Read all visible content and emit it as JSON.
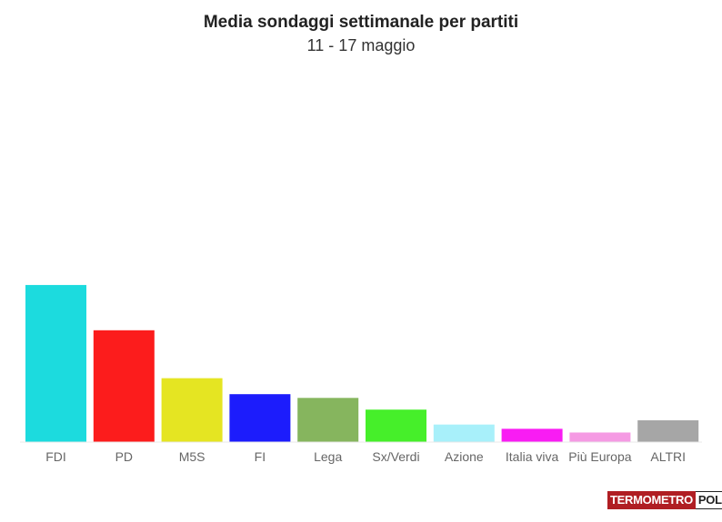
{
  "chart_data": {
    "type": "bar",
    "title": "Media sondaggi settimanale per partiti",
    "subtitle": "11 - 17 maggio",
    "categories": [
      "FDI",
      "PD",
      "M5S",
      "FI",
      "Lega",
      "Sx/Verdi",
      "Azione",
      "Italia viva",
      "Più Europa",
      "ALTRI"
    ],
    "values": [
      29.5,
      21.0,
      12.0,
      9.0,
      8.3,
      6.1,
      3.3,
      2.5,
      1.8,
      4.1
    ],
    "colors": [
      "#1cdbde",
      "#fc1c1c",
      "#e5e522",
      "#1c1cfc",
      "#86b55e",
      "#46ef2a",
      "#a8f0fa",
      "#f91cf3",
      "#f59ae3",
      "#a6a6a6"
    ],
    "xlabel": "",
    "ylabel": "",
    "ylim": [
      0,
      30
    ],
    "grid": false,
    "legend": "none"
  },
  "branding": {
    "logo_left": "TERMOMETRO",
    "logo_right": "POLITICO"
  }
}
